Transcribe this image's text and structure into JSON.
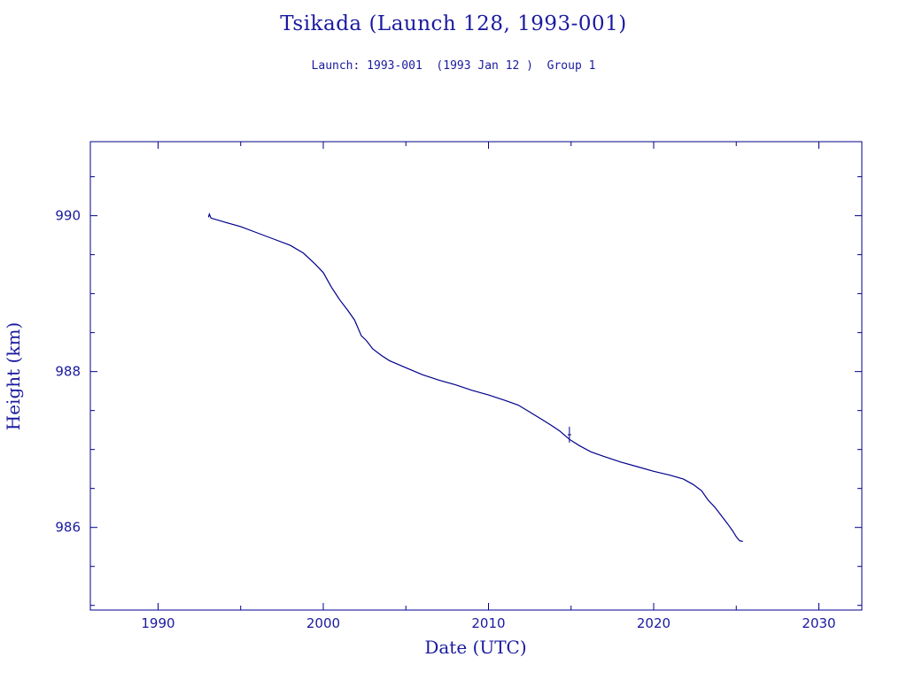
{
  "chart_data": {
    "type": "line",
    "title": "Tsikada (Launch 128, 1993-001)",
    "subtitle": "Launch: 1993-001  (1993 Jan 12 )  Group 1",
    "xlabel": "Date (UTC)",
    "ylabel": "Height (km)",
    "xlim": [
      1985.9,
      2032.6
    ],
    "ylim": [
      984.94,
      990.95
    ],
    "x_ticks": [
      1990,
      2000,
      2010,
      2020,
      2030
    ],
    "y_ticks": [
      986,
      988,
      990
    ],
    "grid": false,
    "color": "#00008b",
    "series": [
      {
        "x": [
          1993.05,
          1993.1,
          1993.2,
          1994.0,
          1995.0,
          1996.0,
          1997.0,
          1998.0,
          1998.8,
          1999.5,
          2000.0,
          2000.5,
          2001.0,
          2001.5,
          2001.9,
          2002.3,
          2002.6,
          2003.0,
          2003.5,
          2004.0,
          2005.0,
          2006.0,
          2007.0,
          2008.0,
          2009.0,
          2010.0,
          2011.0,
          2011.8,
          2012.5,
          2013.2,
          2013.8,
          2014.3,
          2014.9,
          2015.5,
          2016.2,
          2017.0,
          2018.0,
          2019.0,
          2020.0,
          2021.0,
          2021.8,
          2022.4,
          2022.9,
          2023.3,
          2023.7,
          2024.1,
          2024.5,
          2024.8,
          2025.0,
          2025.2,
          2025.4
        ],
        "y": [
          989.98,
          990.02,
          989.97,
          989.92,
          989.86,
          989.78,
          989.7,
          989.62,
          989.52,
          989.38,
          989.27,
          989.08,
          988.92,
          988.78,
          988.66,
          988.46,
          988.4,
          988.29,
          988.21,
          988.14,
          988.05,
          987.96,
          987.89,
          987.83,
          987.76,
          987.7,
          987.63,
          987.57,
          987.48,
          987.39,
          987.31,
          987.24,
          987.13,
          987.05,
          986.97,
          986.91,
          986.84,
          986.78,
          986.72,
          986.67,
          986.62,
          986.55,
          986.47,
          986.35,
          986.26,
          986.15,
          986.04,
          985.95,
          985.88,
          985.83,
          985.82
        ]
      }
    ],
    "markers": [
      {
        "x": 2014.9,
        "y": 987.19,
        "symbol": "+"
      }
    ]
  }
}
